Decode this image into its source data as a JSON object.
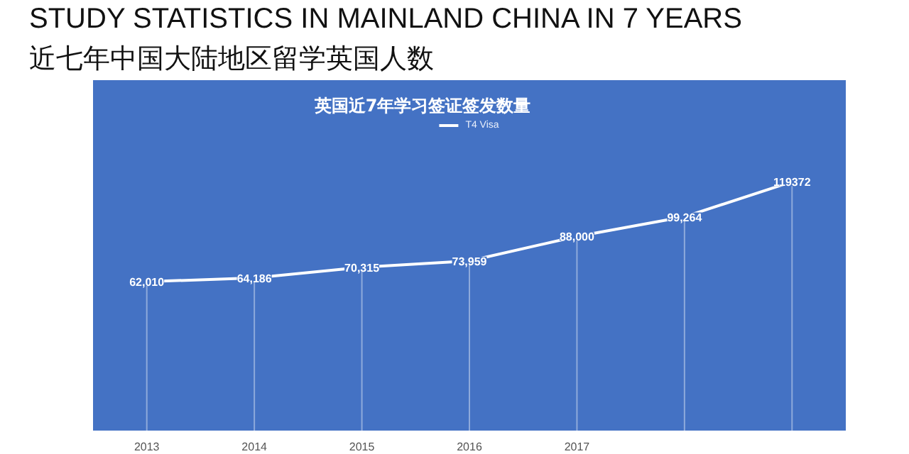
{
  "chart_data": {
    "type": "line",
    "title": "STUDY STATISTICS IN MAINLAND CHINA IN 7 YEARS",
    "subtitle": "近七年中国大陆地区留学英国人数",
    "annotations": [
      "英国近7年学习签证签发数量"
    ],
    "categories": [
      "2013",
      "2014",
      "2015",
      "2016",
      "2017",
      null,
      null
    ],
    "series": [
      {
        "name": "T4 Visa",
        "color": "#ffffff",
        "values": [
          62010,
          64186,
          70315,
          73959,
          88000,
          99264,
          119372
        ],
        "value_labels": [
          "62,010",
          "64,186",
          "70,315",
          "73,959",
          "88,000",
          "99,264",
          "119372"
        ]
      }
    ],
    "ylim": [
      -23500,
      177700
    ],
    "grid": "x",
    "legend": "top",
    "line_style": "solid"
  }
}
